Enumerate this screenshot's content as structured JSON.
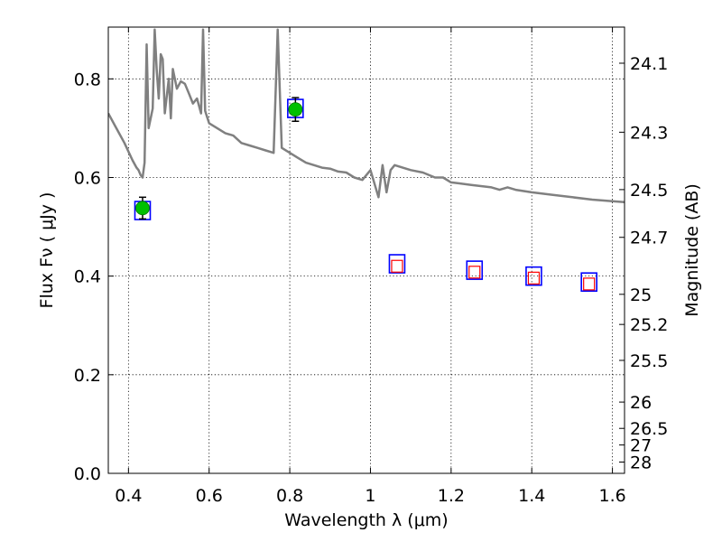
{
  "chart_data": {
    "type": "scatter",
    "xlabel": "Wavelength  λ (μm)",
    "ylabel": "Flux  Fν  ( μJy )",
    "y2label": "Magnitude (AB)",
    "xlim": [
      0.35,
      1.63
    ],
    "ylim": [
      0.0,
      0.905
    ],
    "grid": true,
    "x_ticks": [
      0.4,
      0.6,
      0.8,
      1.0,
      1.2,
      1.4,
      1.6
    ],
    "x_tick_labels": [
      "0.4",
      "0.6",
      "0.8",
      "1",
      "1.2",
      "1.4",
      "1.6"
    ],
    "y_ticks": [
      0.0,
      0.2,
      0.4,
      0.6,
      0.8
    ],
    "y_tick_labels": [
      "0.0",
      "0.2",
      "0.4",
      "0.6",
      "0.8"
    ],
    "mag_ticks": [
      {
        "mag": 24.1,
        "label": "24.1"
      },
      {
        "mag": 24.3,
        "label": "24.3"
      },
      {
        "mag": 24.5,
        "label": "24.5"
      },
      {
        "mag": 24.7,
        "label": "24.7"
      },
      {
        "mag": 25.0,
        "label": "25"
      },
      {
        "mag": 25.2,
        "label": "25.2"
      },
      {
        "mag": 25.5,
        "label": "25.5"
      },
      {
        "mag": 26.0,
        "label": "26"
      },
      {
        "mag": 26.5,
        "label": "26.5"
      },
      {
        "mag": 27.0,
        "label": "27"
      },
      {
        "mag": 28.0,
        "label": "28"
      }
    ],
    "observed": [
      {
        "x": 0.435,
        "y": 0.538,
        "err": 0.022
      },
      {
        "x": 0.814,
        "y": 0.738,
        "err": 0.024
      }
    ],
    "model_boxes": [
      {
        "x": 0.435,
        "y": 0.533
      },
      {
        "x": 0.814,
        "y": 0.74
      },
      {
        "x": 1.066,
        "y": 0.425
      },
      {
        "x": 1.258,
        "y": 0.412
      },
      {
        "x": 1.405,
        "y": 0.4
      },
      {
        "x": 1.542,
        "y": 0.388
      }
    ],
    "upper_limits": [
      {
        "x": 1.066,
        "y": 0.42
      },
      {
        "x": 1.258,
        "y": 0.408
      },
      {
        "x": 1.405,
        "y": 0.396
      },
      {
        "x": 1.542,
        "y": 0.384
      }
    ],
    "spectrum": {
      "x": [
        0.35,
        0.37,
        0.39,
        0.41,
        0.42,
        0.425,
        0.43,
        0.435,
        0.44,
        0.445,
        0.45,
        0.46,
        0.465,
        0.47,
        0.475,
        0.48,
        0.485,
        0.49,
        0.5,
        0.505,
        0.51,
        0.52,
        0.53,
        0.54,
        0.55,
        0.56,
        0.57,
        0.58,
        0.585,
        0.59,
        0.6,
        0.62,
        0.64,
        0.66,
        0.68,
        0.7,
        0.72,
        0.74,
        0.76,
        0.77,
        0.78,
        0.8,
        0.82,
        0.84,
        0.86,
        0.88,
        0.9,
        0.92,
        0.94,
        0.96,
        0.98,
        1.0,
        1.02,
        1.03,
        1.04,
        1.05,
        1.06,
        1.08,
        1.1,
        1.13,
        1.16,
        1.18,
        1.2,
        1.25,
        1.3,
        1.32,
        1.34,
        1.36,
        1.4,
        1.45,
        1.5,
        1.55,
        1.6,
        1.63
      ],
      "y": [
        0.73,
        0.7,
        0.67,
        0.635,
        0.62,
        0.615,
        0.605,
        0.6,
        0.63,
        0.87,
        0.7,
        0.74,
        0.9,
        0.82,
        0.76,
        0.85,
        0.84,
        0.73,
        0.8,
        0.72,
        0.82,
        0.78,
        0.795,
        0.79,
        0.77,
        0.75,
        0.76,
        0.73,
        0.9,
        0.735,
        0.71,
        0.7,
        0.69,
        0.685,
        0.67,
        0.665,
        0.66,
        0.655,
        0.65,
        0.9,
        0.66,
        0.65,
        0.64,
        0.63,
        0.625,
        0.62,
        0.618,
        0.612,
        0.61,
        0.6,
        0.595,
        0.615,
        0.56,
        0.625,
        0.57,
        0.615,
        0.625,
        0.62,
        0.615,
        0.61,
        0.6,
        0.6,
        0.59,
        0.585,
        0.58,
        0.575,
        0.58,
        0.575,
        0.57,
        0.565,
        0.56,
        0.555,
        0.552,
        0.55
      ]
    }
  }
}
